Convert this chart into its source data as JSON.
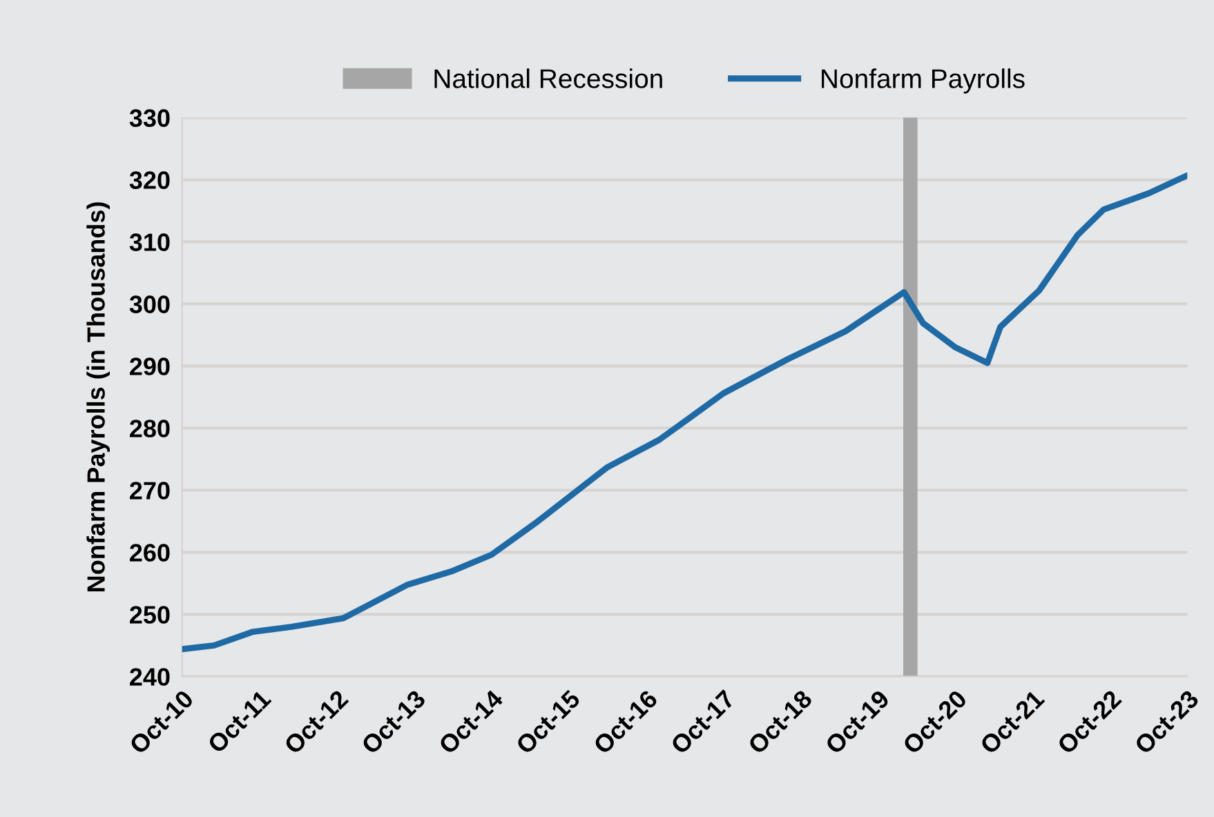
{
  "chart_data": {
    "type": "line",
    "ylabel": "Nonfarm Payrolls (in Thousands)",
    "x": [
      "2010-10",
      "2011-03",
      "2011-09",
      "2012-03",
      "2012-11",
      "2013-09",
      "2014-04",
      "2014-10",
      "2015-05",
      "2016-04",
      "2016-12",
      "2017-05",
      "2017-10",
      "2018-08",
      "2019-05",
      "2020-02",
      "2020-05",
      "2020-10",
      "2021-03",
      "2021-05",
      "2021-11",
      "2022-05",
      "2022-09",
      "2023-04",
      "2023-10"
    ],
    "series": [
      {
        "name": "Nonfarm Payrolls",
        "color": "#1f6aa5",
        "values": [
          244.4,
          245.0,
          247.2,
          248.0,
          249.4,
          254.8,
          257.0,
          259.6,
          264.8,
          273.7,
          278.1,
          281.8,
          285.6,
          291.1,
          295.6,
          301.9,
          296.9,
          293.0,
          290.5,
          296.3,
          302.2,
          311.1,
          315.2,
          317.8,
          320.7
        ]
      }
    ],
    "bands": [
      {
        "axis": "x",
        "from": "2020-02",
        "to": "2020-04",
        "label": "National Recession",
        "color": "#a6a6a6"
      }
    ],
    "xlim": [
      "2010-10",
      "2023-10"
    ],
    "xticks": [
      {
        "value": "2010-10",
        "label": "Oct-10"
      },
      {
        "value": "2011-10",
        "label": "Oct-11"
      },
      {
        "value": "2012-10",
        "label": "Oct-12"
      },
      {
        "value": "2013-10",
        "label": "Oct-13"
      },
      {
        "value": "2014-10",
        "label": "Oct-14"
      },
      {
        "value": "2015-10",
        "label": "Oct-15"
      },
      {
        "value": "2016-10",
        "label": "Oct-16"
      },
      {
        "value": "2017-10",
        "label": "Oct-17"
      },
      {
        "value": "2018-10",
        "label": "Oct-18"
      },
      {
        "value": "2019-10",
        "label": "Oct-19"
      },
      {
        "value": "2020-10",
        "label": "Oct-20"
      },
      {
        "value": "2021-10",
        "label": "Oct-21"
      },
      {
        "value": "2022-10",
        "label": "Oct-22"
      },
      {
        "value": "2023-10",
        "label": "Oct-23"
      }
    ],
    "ylim": [
      240,
      330
    ],
    "yticks": [
      240,
      250,
      260,
      270,
      280,
      290,
      300,
      310,
      320,
      330
    ],
    "grid": "y",
    "legend": "top",
    "marker": "none",
    "line_style": "solid"
  }
}
